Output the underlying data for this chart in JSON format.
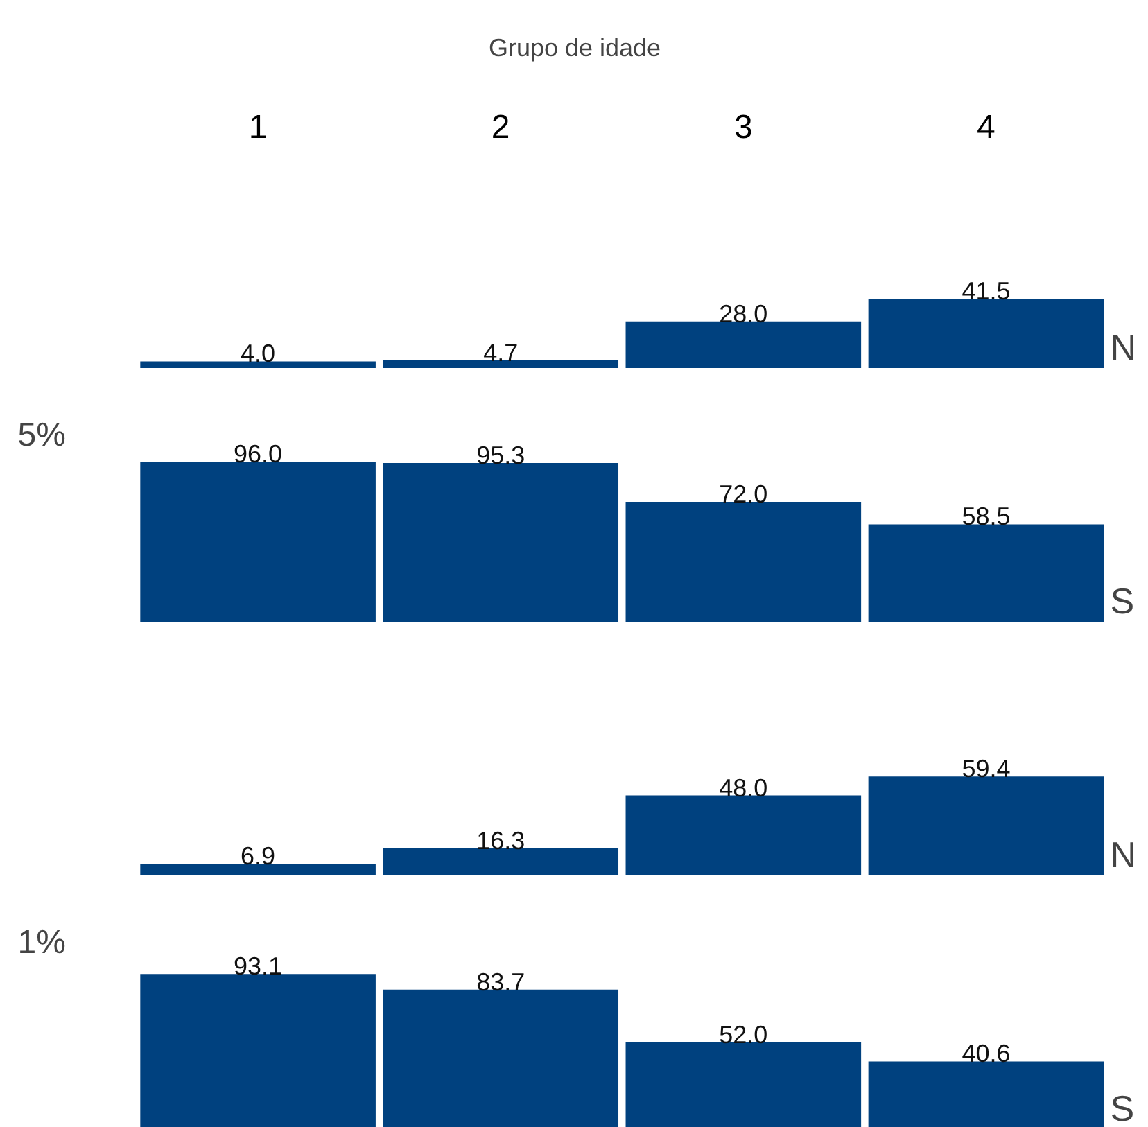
{
  "chart_data": [
    {
      "type": "bar",
      "xlabel": "Grupo de idade",
      "categories": [
        "1",
        "2",
        "3",
        "4"
      ],
      "values": [
        4.0,
        4.7,
        28.0,
        41.5
      ],
      "value_labels": [
        "4.0",
        "4.7",
        "28.0",
        "41.5"
      ],
      "color": "#00417f",
      "tick_labels": "x",
      "annotations": [
        "N"
      ]
    },
    {
      "type": "bar",
      "ylabel": "5%",
      "categories": [
        "1",
        "2",
        "3",
        "4"
      ],
      "values": [
        96.0,
        95.3,
        72.0,
        58.5
      ],
      "value_labels": [
        "96.0",
        "95.3",
        "72.0",
        "58.5"
      ],
      "color": "#00417f",
      "tick_labels": false,
      "annotations": [
        "S"
      ]
    },
    {
      "type": "bar",
      "categories": [
        "1",
        "2",
        "3",
        "4"
      ],
      "values": [
        6.9,
        16.3,
        48.0,
        59.4
      ],
      "value_labels": [
        "6.9",
        "16.3",
        "48.0",
        "59.4"
      ],
      "color": "#00417f",
      "tick_labels": false,
      "annotations": [
        "N"
      ]
    },
    {
      "type": "bar",
      "ylabel": "1%",
      "categories": [
        "1",
        "2",
        "3",
        "4"
      ],
      "values": [
        93.1,
        83.7,
        52.0,
        40.6
      ],
      "value_labels": [
        "93.1",
        "83.7",
        "52.0",
        "40.6"
      ],
      "color": "#00417f",
      "tick_labels": false,
      "annotations": [
        "S"
      ]
    }
  ]
}
